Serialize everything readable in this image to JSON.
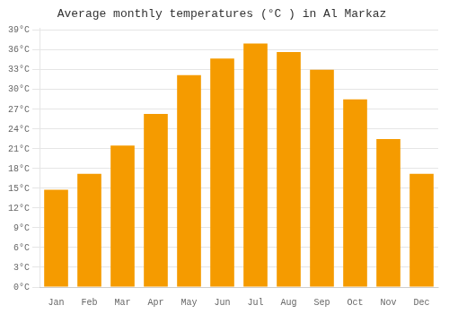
{
  "chart_data": {
    "type": "bar",
    "title": "Average monthly temperatures (°C ) in Al Markaz",
    "categories": [
      "Jan",
      "Feb",
      "Mar",
      "Apr",
      "May",
      "Jun",
      "Jul",
      "Aug",
      "Sep",
      "Oct",
      "Nov",
      "Dec"
    ],
    "values": [
      14.8,
      17.2,
      21.5,
      26.3,
      32.2,
      34.7,
      37.0,
      35.7,
      33.0,
      28.5,
      22.5,
      17.2
    ],
    "color": "#F59B00",
    "ylim": [
      0,
      39.3
    ],
    "yticks": [
      {
        "value": 0,
        "label": "0°C"
      },
      {
        "value": 3,
        "label": "3°C"
      },
      {
        "value": 6,
        "label": "6°C"
      },
      {
        "value": 9,
        "label": "9°C"
      },
      {
        "value": 12,
        "label": "12°C"
      },
      {
        "value": 15,
        "label": "15°C"
      },
      {
        "value": 18,
        "label": "18°C"
      },
      {
        "value": 21,
        "label": "21°C"
      },
      {
        "value": 24,
        "label": "24°C"
      },
      {
        "value": 27,
        "label": "27°C"
      },
      {
        "value": 30,
        "label": "30°C"
      },
      {
        "value": 33,
        "label": "33°C"
      },
      {
        "value": 36,
        "label": "36°C"
      },
      {
        "value": 39,
        "label": "39°C"
      }
    ],
    "grid": true
  }
}
